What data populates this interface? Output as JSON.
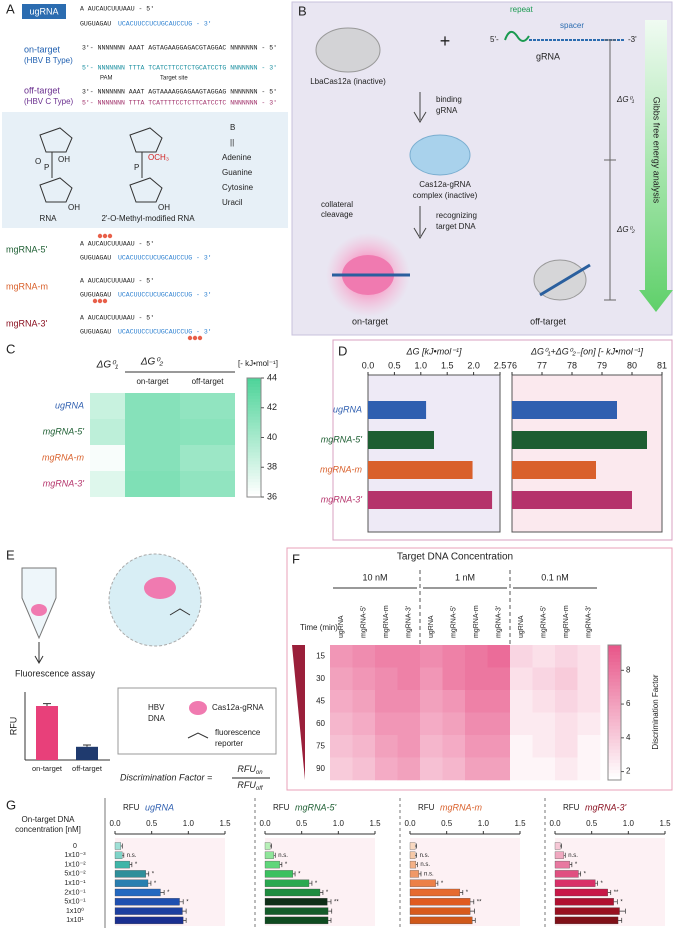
{
  "figure": {
    "panel_labels": [
      "A",
      "B",
      "C",
      "D",
      "E",
      "F",
      "G"
    ]
  },
  "panel_a": {
    "ugrna": {
      "label": "ugRNA",
      "seq5": "A AUCAUCUUUAAU - 5'",
      "seq3a": "GUGUAGAU",
      "seq3b": "UCACUUCCUCUGCAUCCUG - 3'"
    },
    "on_target": {
      "label": "on-target",
      "type": "(HBV B Type)",
      "top": "3'- NNNNNNN AAAT  AGTAGAAGGAGACGTAGGAC  NNNNNNN - 5'",
      "bottom": "5'- NNNNNNN TTTA  TCATCTTCCTCTGCATCCTG  NNNNNNN - 3'",
      "pam": "PAM",
      "site": "Target site"
    },
    "off_target": {
      "label": "off-target",
      "type": "(HBV C Type)",
      "top": "3'- NNNNNNN AAAT  AGTAAAAGGAGAAGTAGGAG  NNNNNNN - 5'",
      "bottom": "5'- NNNNNNN TTTA  TCATTTTCCTCTTCATCCTC  NNNNNNN - 3'"
    },
    "structures": {
      "rna": "RNA",
      "modified": "2'-O-Methyl-modified RNA",
      "oh": "OH",
      "och3": "OCH₃",
      "p": "P",
      "o": "O",
      "b": "B",
      "eq": "||",
      "bases": [
        "Adenine",
        "Guanine",
        "Cytosine",
        "Uracil"
      ]
    },
    "mgrnas": [
      {
        "label": "mgRNA-5'",
        "seq5": "A AUCAUCUUUAAU - 5'",
        "seq3a": "GUGUAGAU",
        "seq3b": "UCACUUCCUCUGCAUCCUG - 3'"
      },
      {
        "label": "mgRNA-m",
        "seq5": "A AUCAUCUUUAAU - 5'",
        "seq3a": "GUGUAGAU",
        "seq3b": "UCACUUCCUCUGCAUCCUG - 3'"
      },
      {
        "label": "mgRNA-3'",
        "seq5": "A AUCAUCUUUAAU - 5'",
        "seq3a": "GUGUAGAU",
        "seq3b": "UCACUUCCUCUGCAUCCUG - 3'"
      }
    ]
  },
  "panel_b": {
    "cas": "LbaCas12a (inactive)",
    "plus": "+",
    "repeat": "repeat",
    "spacer": "spacer",
    "five": "5'-",
    "three": "-3'",
    "grna": "gRNA",
    "step1": [
      "binding",
      "gRNA"
    ],
    "complex": [
      "Cas12a-gRNA",
      "complex (inactive)"
    ],
    "step2": [
      "recognizing",
      "target DNA"
    ],
    "collateral": [
      "collateral",
      "cleavage"
    ],
    "on": "on-target",
    "off": "off-target",
    "dg1": "ΔG⁰₁",
    "dg2": "ΔG⁰₂",
    "arrow": "Gibbs free energy analysis"
  },
  "panel_e": {
    "assay": "Fluorescence assay",
    "hbv": [
      "HBV",
      "DNA"
    ],
    "cas": "Cas12a-gRNA",
    "reporter": [
      "fluorescence",
      "reporter"
    ],
    "df": "Discrimination Factor =",
    "num": {
      "main": "RFU",
      "sub": "on"
    },
    "den": {
      "main": "RFU",
      "sub": "off"
    }
  },
  "chart_data": [
    {
      "type": "heatmap",
      "rows": [
        "ugRNA",
        "mgRNA-5'",
        "mgRNA-m",
        "mgRNA-3'"
      ],
      "row_colors": [
        "#2f5fb0",
        "#1d5e32",
        "#d9602b",
        "#b5336b"
      ],
      "columns": [
        "ΔG⁰₁",
        "on-target",
        "off-target"
      ],
      "column_group": "ΔG⁰₂",
      "unit": "[- kJ•mol⁻¹]",
      "values": [
        [
          38.5,
          41.5,
          41.0
        ],
        [
          39.0,
          41.5,
          41.3
        ],
        [
          36.3,
          41.5,
          40.5
        ],
        [
          37.5,
          41.8,
          41.0
        ]
      ],
      "zlim": [
        36,
        44
      ],
      "zticks": [
        36,
        38,
        40,
        42,
        44
      ],
      "color_low": "#ffffff",
      "color_high": "#4fd49a"
    },
    {
      "type": "hbar",
      "xlabel": "ΔG  [kJ•mol⁻¹]",
      "categories": [
        "ugRNA",
        "mgRNA-5'",
        "mgRNA-m",
        "mgRNA-3'"
      ],
      "values": [
        1.1,
        1.25,
        1.98,
        2.35
      ],
      "colors": [
        "#2f5fb0",
        "#1d5e32",
        "#d9602b",
        "#b5336b"
      ],
      "xlim": [
        0,
        2.5
      ],
      "xticks": [
        {
          "value": 0,
          "label": "0.0"
        },
        0.5,
        {
          "value": 1,
          "label": "1.0"
        },
        1.5,
        {
          "value": 2,
          "label": "2.0"
        },
        2.5
      ]
    },
    {
      "type": "hbar",
      "xlabel": "ΔG⁰₁+ΔG⁰₂₋[on]  [- kJ•mol⁻¹]",
      "values": [
        79.5,
        80.5,
        78.8,
        80.0
      ],
      "colors": [
        "#2f5fb0",
        "#1d5e32",
        "#d9602b",
        "#b5336b"
      ],
      "xlim": [
        76,
        81
      ],
      "xticks": [
        76,
        77,
        78,
        79,
        80,
        81
      ]
    },
    {
      "type": "bar",
      "ylabel": "RFU",
      "categories": [
        "on-target",
        "off-target"
      ],
      "values": [
        0.9,
        0.22
      ],
      "errors": [
        0.04,
        0.03
      ],
      "colors": [
        "#e8407a",
        "#1f3a6e"
      ]
    },
    {
      "type": "heatmap",
      "title": "Target DNA Concentration",
      "groups": [
        "10 nM",
        "1 nM",
        "0.1 nM"
      ],
      "row_title": "Time (min)",
      "columns": [
        "ugRNA",
        "mgRNA-5'",
        "mgRNA-m",
        "mgRNA-3'",
        "ugRNA",
        "mgRNA-5'",
        "mgRNA-m",
        "mgRNA-3'",
        "ugRNA",
        "mgRNA-5'",
        "mgRNA-m",
        "mgRNA-3'"
      ],
      "rows": [
        15,
        30,
        45,
        60,
        75,
        90
      ],
      "values": [
        [
          6.5,
          7,
          7.5,
          7.5,
          7,
          7.5,
          8,
          8.5,
          3.5,
          3,
          3.5,
          3
        ],
        [
          6,
          6.5,
          7,
          7.5,
          6.5,
          7.5,
          8,
          8,
          3,
          3.5,
          4,
          3
        ],
        [
          5.5,
          6,
          7,
          7,
          6,
          6.5,
          7.5,
          7.5,
          2.5,
          3,
          3.5,
          3
        ],
        [
          5,
          5.5,
          6.5,
          6.5,
          5.5,
          6,
          7,
          7,
          2.5,
          2.5,
          3,
          2.5
        ],
        [
          4.5,
          5,
          6,
          6.5,
          5,
          5.5,
          6.5,
          6.5,
          2,
          2.5,
          3,
          2
        ],
        [
          4,
          4.5,
          5.5,
          6,
          4.5,
          5,
          6,
          6,
          2,
          2,
          2.5,
          2
        ]
      ],
      "zlim": [
        1.5,
        9.5
      ],
      "zticks": [
        2,
        4,
        6,
        8
      ],
      "zlabel": "Discrimination Factor",
      "color_low": "#ffffff",
      "color_high": "#e8578a"
    },
    {
      "type": "hbar_err",
      "ylabel": [
        "On-target DNA",
        "concentration [nM]"
      ],
      "xlabel": "RFU",
      "name": "ugRNA",
      "name_color": "#2f5fb0",
      "categories": [
        "0",
        "1x10⁻³",
        "1x10⁻²",
        "5x10⁻²",
        "1x10⁻¹",
        "2x10⁻¹",
        "5x10⁻¹",
        "1x10⁰",
        "1x10¹"
      ],
      "values": [
        0.08,
        0.1,
        0.2,
        0.42,
        0.45,
        0.62,
        0.88,
        0.92,
        0.93
      ],
      "errors": [
        0.02,
        0.02,
        0.03,
        0.04,
        0.04,
        0.05,
        0.05,
        0.05,
        0.04
      ],
      "significance": [
        null,
        "n.s.",
        "*",
        "*",
        "*",
        "*",
        "*",
        null,
        null
      ],
      "colors": [
        "#9fe0d6",
        "#7fd3c8",
        "#3fb5a8",
        "#2f8f9a",
        "#2a7fb0",
        "#2368c0",
        "#1f4fb0",
        "#1d3fa0",
        "#1a2f90"
      ],
      "xlim": [
        0,
        1.5
      ],
      "xticks": [
        {
          "value": 0,
          "label": "0.0"
        },
        0.5,
        {
          "value": 1,
          "label": "1.0"
        },
        1.5
      ]
    },
    {
      "type": "hbar_err",
      "xlabel": "RFU",
      "name": "mgRNA-5'",
      "name_color": "#1d5e32",
      "values": [
        0.07,
        0.12,
        0.2,
        0.38,
        0.6,
        0.75,
        0.85,
        0.86,
        0.86
      ],
      "errors": [
        0.02,
        0.02,
        0.03,
        0.03,
        0.04,
        0.04,
        0.05,
        0.05,
        0.04
      ],
      "significance": [
        null,
        "n.s.",
        "*",
        "*",
        "*",
        "*",
        "**",
        null,
        null
      ],
      "colors": [
        "#b8f0b8",
        "#8fe59a",
        "#5fd67a",
        "#3cc060",
        "#2aa850",
        "#1f8c40",
        "#0f2f18",
        "#145c2a",
        "#0f4a20"
      ],
      "xlim": [
        0,
        1.5
      ],
      "xticks": [
        {
          "value": 0,
          "label": "0.0"
        },
        0.5,
        {
          "value": 1,
          "label": "1.0"
        },
        1.5
      ]
    },
    {
      "type": "hbar_err",
      "xlabel": "RFU",
      "name": "mgRNA-m",
      "name_color": "#d9602b",
      "values": [
        0.07,
        0.07,
        0.08,
        0.12,
        0.35,
        0.68,
        0.82,
        0.82,
        0.85
      ],
      "errors": [
        0.02,
        0.02,
        0.02,
        0.03,
        0.03,
        0.04,
        0.05,
        0.06,
        0.04
      ],
      "significance": [
        null,
        "n.s.",
        "n.s.",
        "n.s.",
        "*",
        "*",
        "**",
        null,
        null
      ],
      "colors": [
        "#f9d8c0",
        "#f6c8a8",
        "#f3b088",
        "#f09868",
        "#ec8048",
        "#e66a30",
        "#e05a20",
        "#d85a1c",
        "#d0581a"
      ],
      "xlim": [
        0,
        1.5
      ],
      "xticks": [
        {
          "value": 0,
          "label": "0.0"
        },
        0.5,
        {
          "value": 1,
          "label": "1.0"
        },
        1.5
      ]
    },
    {
      "type": "hbar_err",
      "xlabel": "RFU",
      "name": "mgRNA-3'",
      "name_color": "#8a1020",
      "values": [
        0.07,
        0.12,
        0.2,
        0.32,
        0.55,
        0.72,
        0.8,
        0.88,
        0.86
      ],
      "errors": [
        0.02,
        0.02,
        0.03,
        0.03,
        0.03,
        0.04,
        0.05,
        0.08,
        0.05
      ],
      "significance": [
        null,
        "n.s.",
        "*",
        "*",
        "*",
        "**",
        "*",
        null,
        null
      ],
      "colors": [
        "#f6c8d6",
        "#f0a8c0",
        "#e878a0",
        "#e05080",
        "#d83068",
        "#c81848",
        "#b01030",
        "#981020",
        "#801018"
      ],
      "xlim": [
        0,
        1.5
      ],
      "xticks": [
        {
          "value": 0,
          "label": "0.0"
        },
        0.5,
        {
          "value": 1,
          "label": "1.0"
        },
        1.5
      ]
    }
  ]
}
